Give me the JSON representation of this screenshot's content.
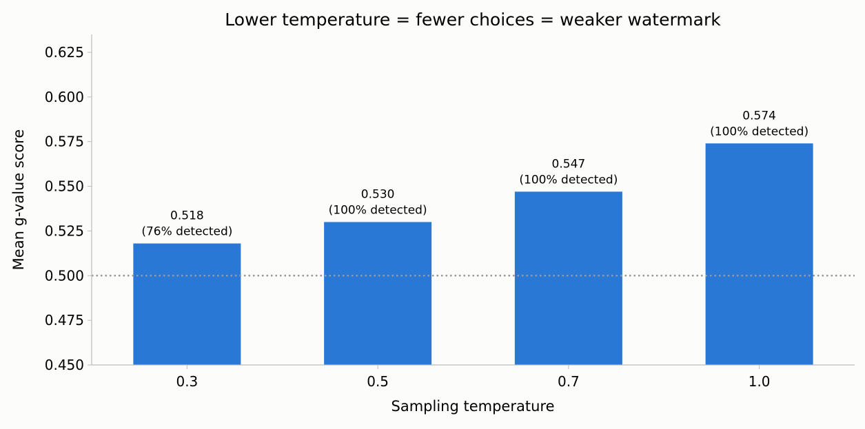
{
  "chart_data": {
    "type": "bar",
    "title": "Lower temperature = fewer choices = weaker watermark",
    "xlabel": "Sampling temperature",
    "ylabel": "Mean g-value score",
    "categories": [
      "0.3",
      "0.5",
      "0.7",
      "1.0"
    ],
    "values": [
      0.518,
      0.53,
      0.547,
      0.574
    ],
    "value_labels": [
      "0.518",
      "0.530",
      "0.547",
      "0.574"
    ],
    "detection_labels": [
      "(76% detected)",
      "(100% detected)",
      "(100% detected)",
      "(100% detected)"
    ],
    "ylim": [
      0.45,
      0.635
    ],
    "yticks": [
      0.45,
      0.475,
      0.5,
      0.525,
      0.55,
      0.575,
      0.6,
      0.625
    ],
    "ytick_labels": [
      "0.450",
      "0.475",
      "0.500",
      "0.525",
      "0.550",
      "0.575",
      "0.600",
      "0.625"
    ],
    "reference_line": 0.5,
    "grid": false,
    "colors": {
      "bar": "#2a78d6",
      "reference_line": "#999999",
      "axis": "#bbbbbb",
      "background": "#fcfcfa"
    }
  }
}
